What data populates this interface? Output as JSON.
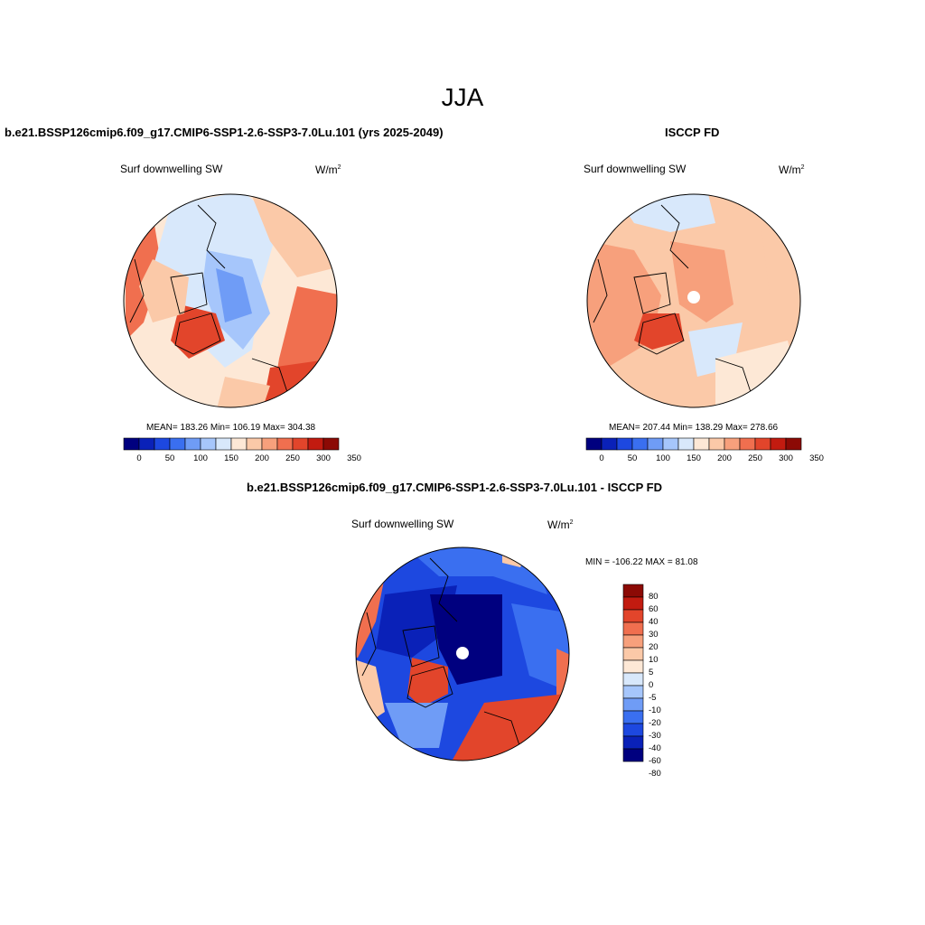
{
  "figure_title": "JJA",
  "panels": {
    "model": {
      "title": "b.e21.BSSP126cmip6.f09_g17.CMIP6-SSP1-2.6-SSP3-7.0Lu.101 (yrs 2025-2049)",
      "variable": "Surf downwelling SW",
      "units": "W/m",
      "units_exp": "2",
      "stats": "MEAN= 183.26  Min= 106.19  Max= 304.38",
      "colorbar_ticks": [
        "0",
        "50",
        "100",
        "150",
        "200",
        "250",
        "300",
        "350"
      ]
    },
    "obs": {
      "title": "ISCCP FD",
      "variable": "Surf downwelling SW",
      "units": "W/m",
      "units_exp": "2",
      "stats": "MEAN= 207.44  Min= 138.29  Max= 278.66",
      "colorbar_ticks": [
        "0",
        "50",
        "100",
        "150",
        "200",
        "250",
        "300",
        "350"
      ]
    },
    "diff": {
      "title": "b.e21.BSSP126cmip6.f09_g17.CMIP6-SSP1-2.6-SSP3-7.0Lu.101 - ISCCP FD",
      "variable": "Surf downwelling SW",
      "units": "W/m",
      "units_exp": "2",
      "stats": "MIN = -106.22 MAX =  81.08",
      "colorbar_ticks": [
        "80",
        "60",
        "40",
        "30",
        "20",
        "10",
        "5",
        "0",
        "-5",
        "-10",
        "-20",
        "-30",
        "-40",
        "-60",
        "-80"
      ]
    }
  },
  "colors": {
    "abs_scale": [
      "#00007f",
      "#0a21b8",
      "#1d48e0",
      "#3a6ff0",
      "#6f9cf6",
      "#a6c6fb",
      "#d8e8fb",
      "#fde8d6",
      "#fbc9a8",
      "#f7a07c",
      "#f06f4f",
      "#e2452b",
      "#c21b10",
      "#8c0a05"
    ],
    "diff_scale": [
      "#8c0a05",
      "#c21b10",
      "#e2452b",
      "#f06f4f",
      "#f7a07c",
      "#fbc9a8",
      "#fde8d6",
      "#d8e8fb",
      "#a6c6fb",
      "#6f9cf6",
      "#3a6ff0",
      "#1d48e0",
      "#0a21b8",
      "#00007f"
    ]
  }
}
